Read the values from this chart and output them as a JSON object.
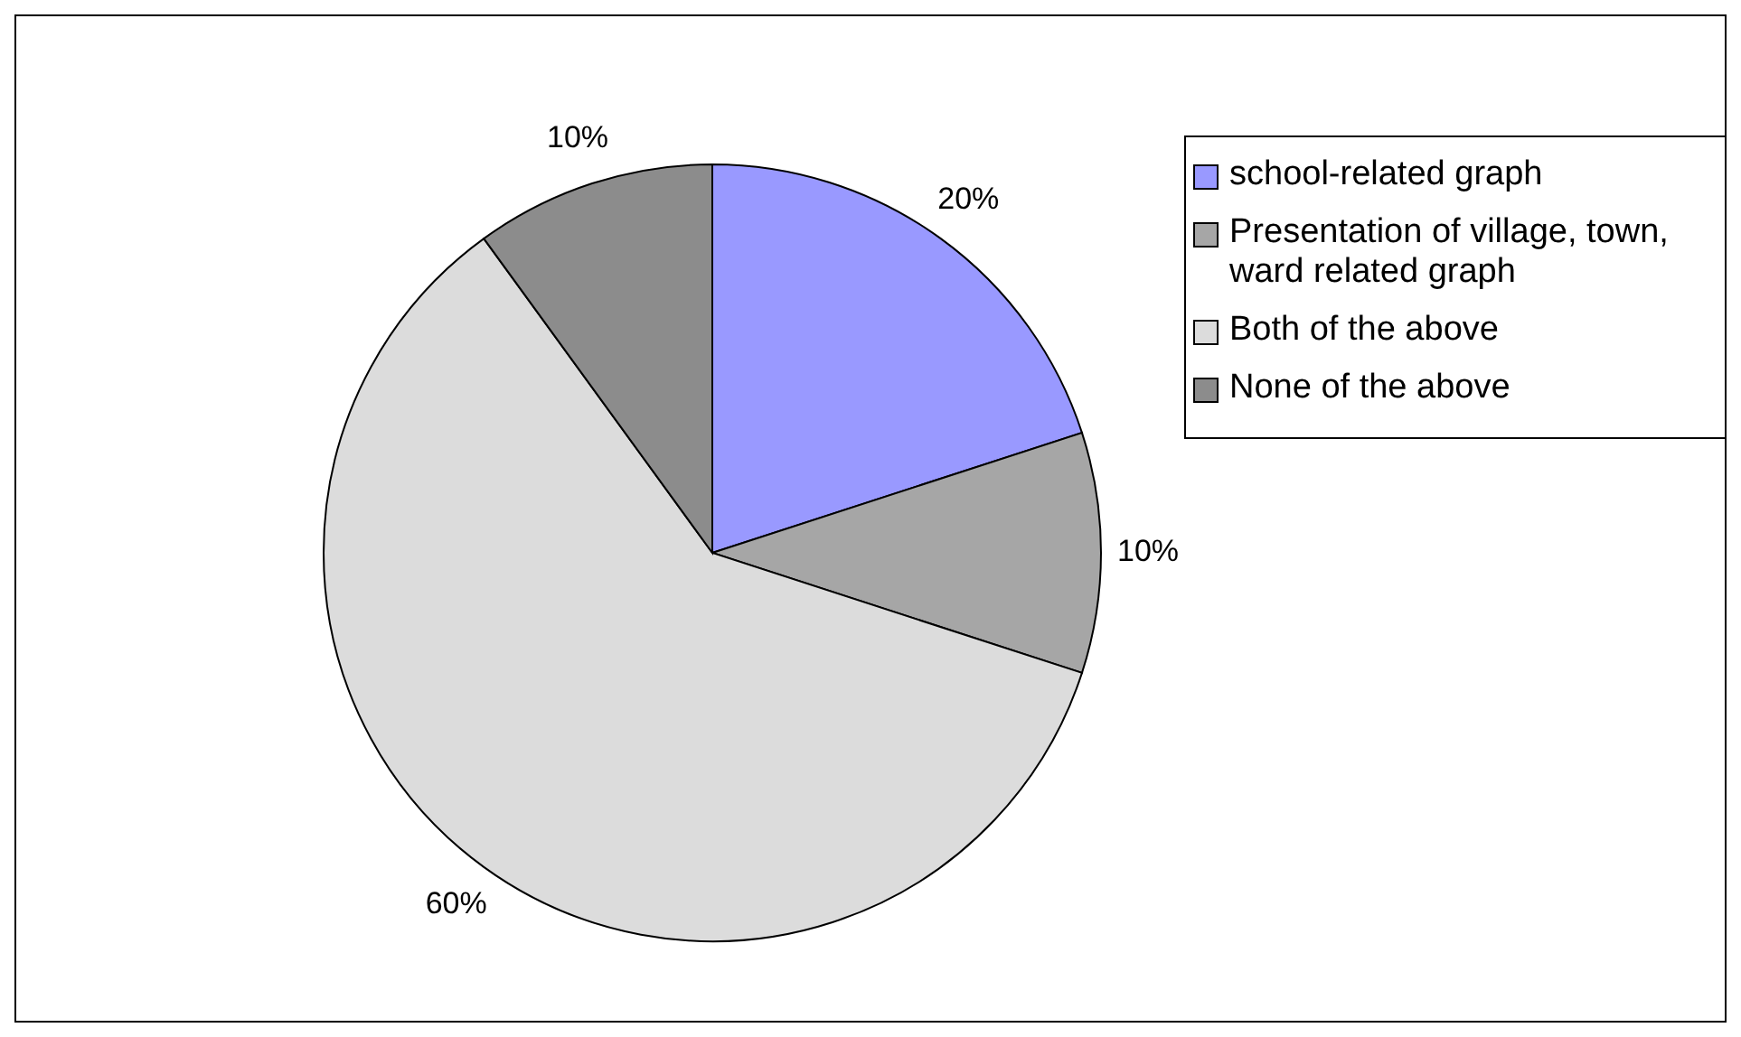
{
  "chart_data": {
    "type": "pie",
    "categories": [
      "school-related graph",
      "Presentation of village, town, ward related graph",
      "Both of the above",
      "None of the above"
    ],
    "values": [
      20,
      10,
      60,
      10
    ],
    "value_labels": [
      "20%",
      "10%",
      "60%",
      "10%"
    ],
    "colors": [
      "#9999ff",
      "#a6a6a6",
      "#dcdcdc",
      "#8c8c8c"
    ],
    "legend": "top right"
  }
}
